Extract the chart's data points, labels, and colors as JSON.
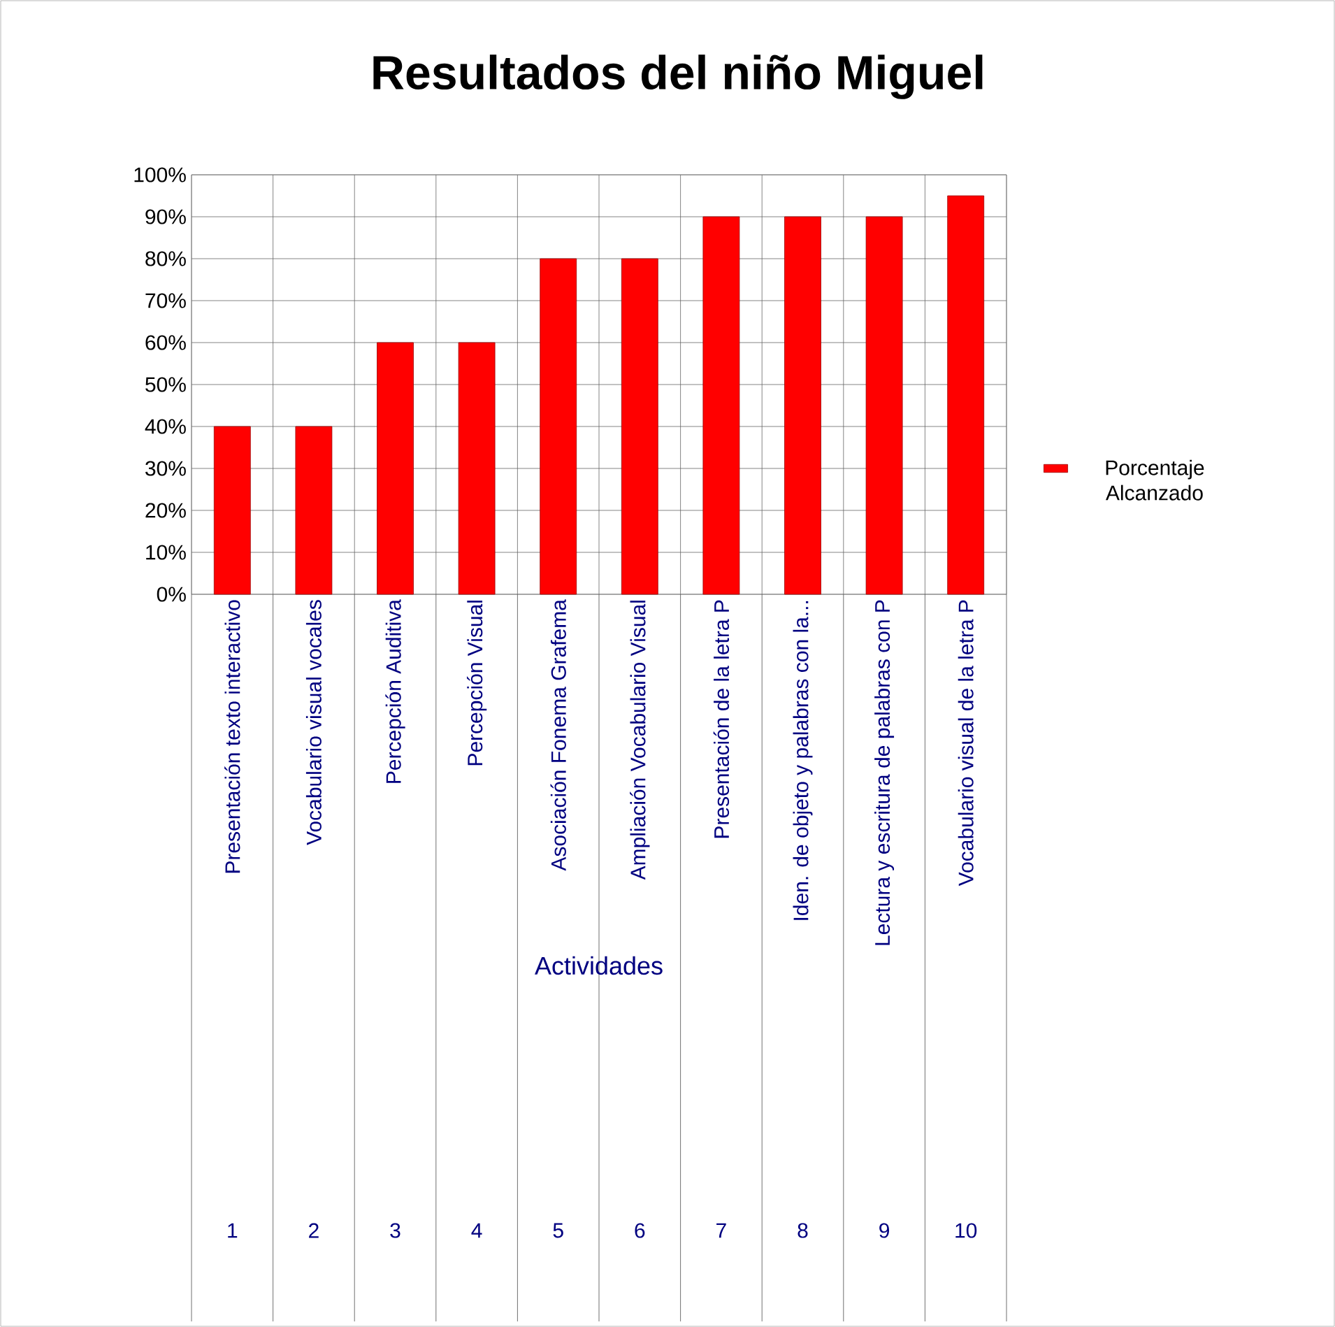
{
  "chart_data": {
    "type": "bar",
    "title": "Resultados del niño Miguel",
    "xlabel": "Actividades",
    "categories": [
      "Presentación texto interactivo",
      "Vocabulario visual vocales",
      "Percepción Auditiva",
      "Percepción Visual",
      "Asociación Fonema Grafema",
      "Ampliación Vocabulario Visual",
      "Presentación de la letra P",
      "Iden. de objeto y palabras con la...",
      "Lectura y escritura de palabras con P",
      "Vocabulario visual de la letra P"
    ],
    "series": [
      {
        "name": "Porcentaje Alcanzado",
        "color": "#ff0000",
        "values": [
          40,
          40,
          60,
          60,
          80,
          80,
          90,
          90,
          90,
          95
        ]
      }
    ],
    "annotations": [
      "1",
      "2",
      "3",
      "4",
      "5",
      "6",
      "7",
      "8",
      "9",
      "10"
    ],
    "ylim": [
      0,
      100
    ],
    "yticks": [
      {
        "value": 0,
        "label": "0%"
      },
      {
        "value": 10,
        "label": "10%"
      },
      {
        "value": 20,
        "label": "20%"
      },
      {
        "value": 30,
        "label": "30%"
      },
      {
        "value": 40,
        "label": "40%"
      },
      {
        "value": 50,
        "label": "50%"
      },
      {
        "value": 60,
        "label": "60%"
      },
      {
        "value": 70,
        "label": "70%"
      },
      {
        "value": 80,
        "label": "80%"
      },
      {
        "value": 90,
        "label": "90%"
      },
      {
        "value": 100,
        "label": "100%"
      }
    ],
    "grid": true,
    "legend": "right"
  }
}
